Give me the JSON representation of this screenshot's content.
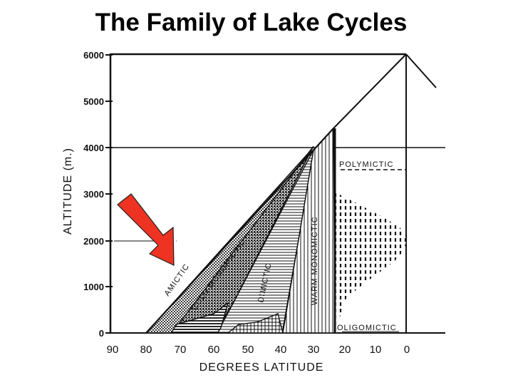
{
  "title": "The Family of Lake Cycles",
  "y_axis": {
    "label": "ALTITUDE (m.)",
    "ticks": [
      "0",
      "1000",
      "2000",
      "3000",
      "4000",
      "5000",
      "6000"
    ]
  },
  "x_axis": {
    "label": "DEGREES LATITUDE",
    "ticks": [
      "90",
      "80",
      "70",
      "60",
      "50",
      "40",
      "30",
      "20",
      "10",
      "0"
    ]
  },
  "zones": {
    "amictic": "AMICTIC",
    "cold_monomictic": "COLD MONOMICTIC",
    "dimictic": "DIMICTIC",
    "warm_monomictic": "WARM MONOMICTIC",
    "polymictic": "POLYMICTIC",
    "oligomictic": "OLIGOMICTIC"
  },
  "colors": {
    "arrow": "#ee3322",
    "ink": "#111111"
  },
  "icons": {
    "pointer": "arrow-pointer-icon"
  }
}
